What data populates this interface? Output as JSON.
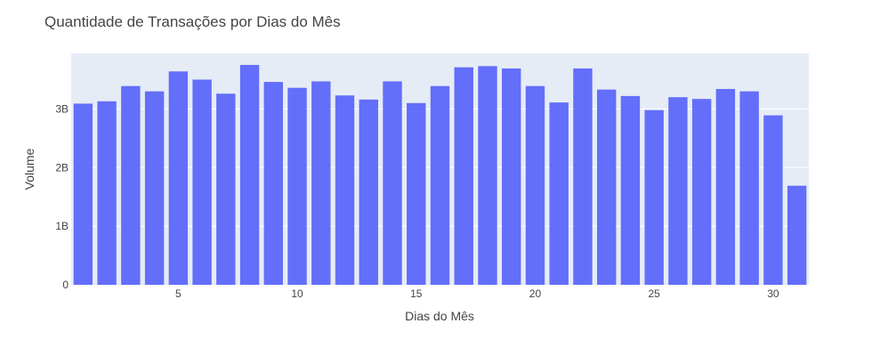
{
  "chart_data": {
    "type": "bar",
    "title": "Quantidade de Transações por Dias do Mês",
    "xlabel": "Dias do Mês",
    "ylabel": "Volume",
    "x": [
      1,
      2,
      3,
      4,
      5,
      6,
      7,
      8,
      9,
      10,
      11,
      12,
      13,
      14,
      15,
      16,
      17,
      18,
      19,
      20,
      21,
      22,
      23,
      24,
      25,
      26,
      27,
      28,
      29,
      30,
      31
    ],
    "values": [
      3090000000.0,
      3130000000.0,
      3390000000.0,
      3300000000.0,
      3640000000.0,
      3500000000.0,
      3260000000.0,
      3750000000.0,
      3460000000.0,
      3360000000.0,
      3470000000.0,
      3230000000.0,
      3160000000.0,
      3470000000.0,
      3100000000.0,
      3390000000.0,
      3710000000.0,
      3730000000.0,
      3690000000.0,
      3390000000.0,
      3110000000.0,
      3690000000.0,
      3330000000.0,
      3220000000.0,
      2980000000.0,
      3200000000.0,
      3170000000.0,
      3340000000.0,
      3300000000.0,
      2890000000.0,
      1690000000.0
    ],
    "xlim": [
      0.5,
      31.5
    ],
    "ylim": [
      0,
      3947000000.0
    ],
    "xticks": [
      {
        "value": 5,
        "label": "5"
      },
      {
        "value": 10,
        "label": "10"
      },
      {
        "value": 15,
        "label": "15"
      },
      {
        "value": 20,
        "label": "20"
      },
      {
        "value": 25,
        "label": "25"
      },
      {
        "value": 30,
        "label": "30"
      }
    ],
    "yticks": [
      {
        "value": 0,
        "label": "0"
      },
      {
        "value": 1000000000.0,
        "label": "1B"
      },
      {
        "value": 2000000000.0,
        "label": "2B"
      },
      {
        "value": 3000000000.0,
        "label": "3B"
      }
    ],
    "grid": true,
    "colors": {
      "bar": "#636efa",
      "plot_bg": "#e5ecf6",
      "grid": "#ffffff",
      "text": "#444444"
    }
  }
}
